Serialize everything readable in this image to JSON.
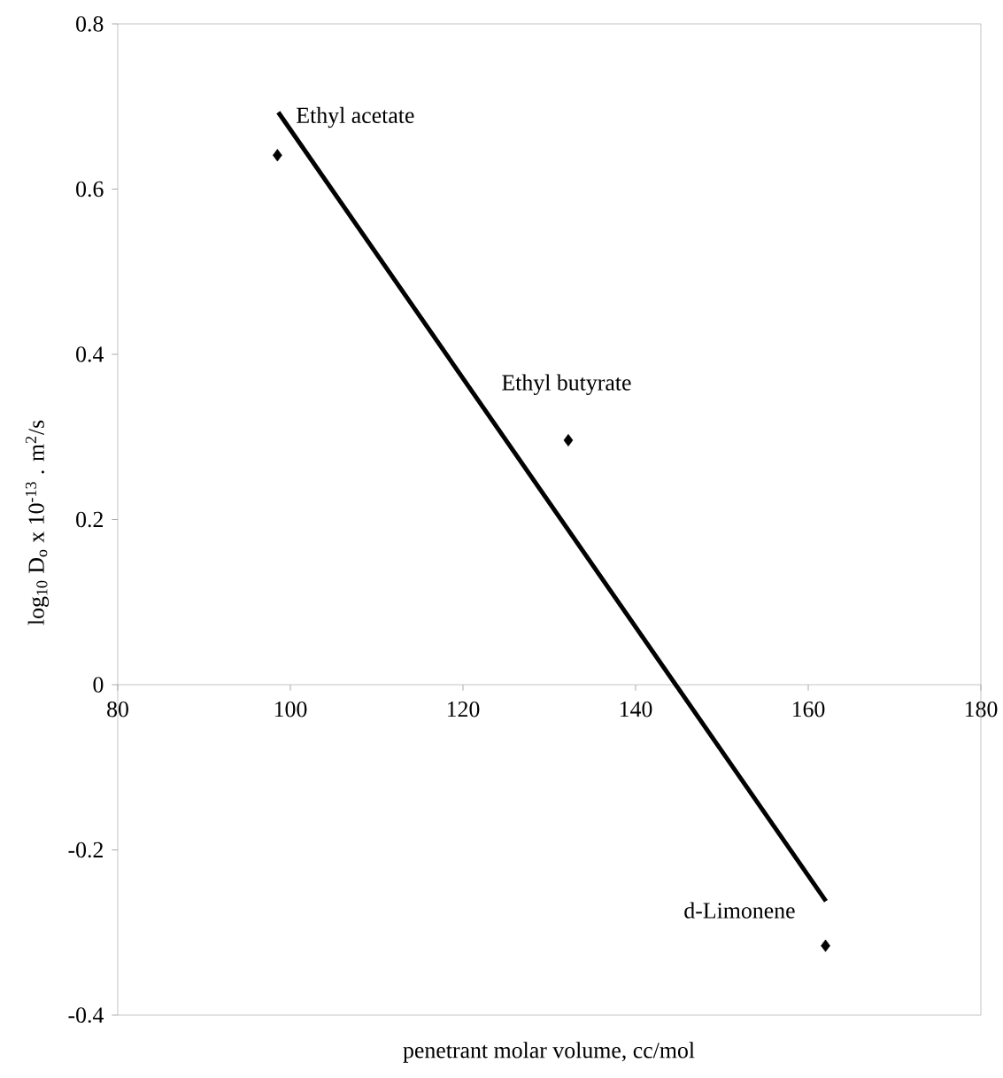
{
  "chart_data": {
    "type": "scatter",
    "xlabel": "penetrant molar volume, cc/mol",
    "ylabel": "log$_{10}$ D$_{o}$ x 10$^{-13}$ . m$^{2}$/s",
    "x": [
      98.5,
      132.2,
      162.0
    ],
    "series": [
      {
        "type": "scatter",
        "color": "#000000",
        "marker": "diamond",
        "values": [
          0.641,
          0.296,
          -0.316
        ]
      },
      {
        "type": "line",
        "color": "#000000",
        "marker": "none",
        "x": [
          98.6,
          162.05
        ],
        "values": [
          0.693,
          -0.262
        ]
      }
    ],
    "annotations": [
      {
        "text": "Ethyl acetate",
        "x": 98.5,
        "y": 0.641
      },
      {
        "text": "Ethyl butyrate",
        "x": 132.2,
        "y": 0.296
      },
      {
        "text": "d-Limonene",
        "x": 162.0,
        "y": -0.316
      }
    ],
    "xlim": [
      80,
      180
    ],
    "ylim": [
      -0.4,
      0.8
    ],
    "xticks": [
      80,
      100,
      120,
      140,
      160,
      180
    ],
    "yticks": [
      -0.4,
      -0.2,
      0,
      0.2,
      0.4,
      0.6,
      0.8
    ],
    "grid": false
  }
}
